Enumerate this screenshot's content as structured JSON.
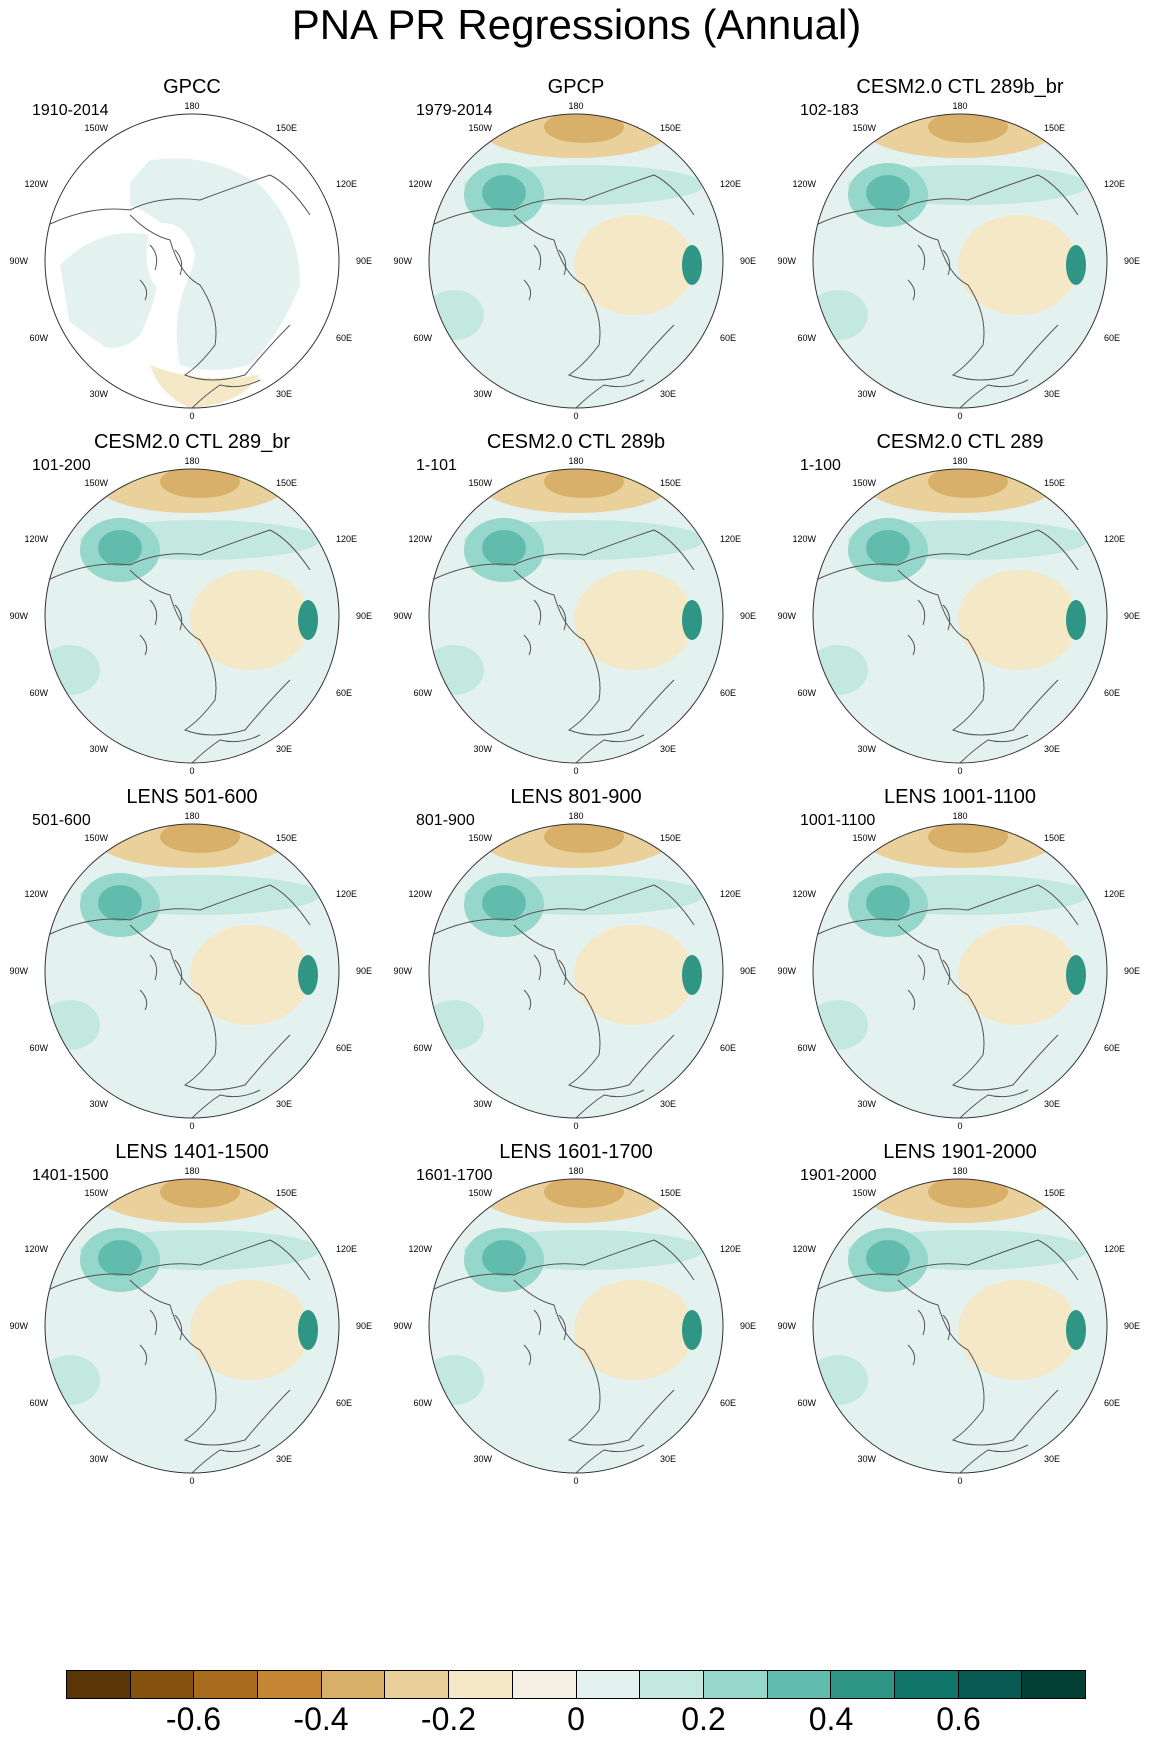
{
  "title": "PNA PR Regressions (Annual)",
  "longitude_labels": [
    "180",
    "150E",
    "120E",
    "90E",
    "60E",
    "30E",
    "0",
    "30W",
    "60W",
    "90W",
    "120W",
    "150W"
  ],
  "panels": [
    {
      "title": "GPCC",
      "period": "1910-2014",
      "masked": true
    },
    {
      "title": "GPCP",
      "period": "1979-2014"
    },
    {
      "title": "CESM2.0 CTL 289b_br",
      "period": "102-183"
    },
    {
      "title": "CESM2.0 CTL 289_br",
      "period": "101-200"
    },
    {
      "title": "CESM2.0 CTL 289b",
      "period": "1-101"
    },
    {
      "title": "CESM2.0 CTL 289",
      "period": "1-100"
    },
    {
      "title": "LENS 501-600",
      "period": "501-600"
    },
    {
      "title": "LENS 801-900",
      "period": "801-900"
    },
    {
      "title": "LENS 1001-1100",
      "period": "1001-1100"
    },
    {
      "title": "LENS 1401-1500",
      "period": "1401-1500"
    },
    {
      "title": "LENS 1601-1700",
      "period": "1601-1700"
    },
    {
      "title": "LENS 1901-2000",
      "period": "1901-2000"
    }
  ],
  "colorbar": {
    "colors": [
      "#5a3508",
      "#85510f",
      "#a86a1c",
      "#c48634",
      "#d9b06a",
      "#ead09b",
      "#f5e8c7",
      "#f4f0e4",
      "#e3f1ef",
      "#c3e8e0",
      "#96d7cb",
      "#61bcae",
      "#2f9585",
      "#11756a",
      "#075b52",
      "#013f35"
    ],
    "labels": [
      "-0.6",
      "-0.4",
      "-0.2",
      "0",
      "0.2",
      "0.4",
      "0.6"
    ]
  }
}
